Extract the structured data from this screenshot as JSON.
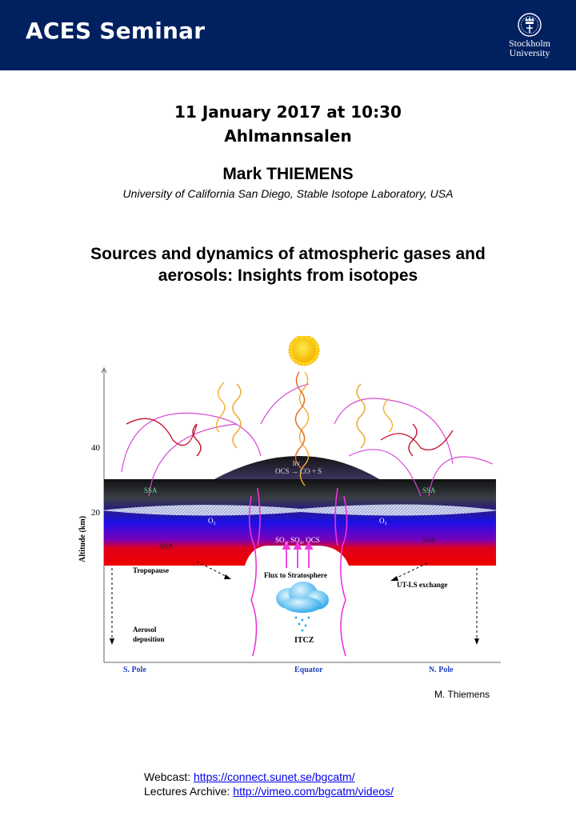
{
  "header": {
    "title": "ACES Seminar",
    "logo_line1": "Stockholm",
    "logo_line2": "University"
  },
  "event": {
    "datetime": "11 January 2017 at 10:30",
    "venue": "Ahlmannsalen"
  },
  "speaker": {
    "name": "Mark THIEMENS",
    "affiliation": "University of California San Diego, Stable Isotope Laboratory, USA"
  },
  "talk": {
    "title_line1": "Sources and dynamics of atmospheric gases and",
    "title_line2": "aerosols: Insights from isotopes"
  },
  "figure": {
    "ylabel": "Altitude (km)",
    "tick_40": "40",
    "tick_20": "20",
    "label_hv": "hv",
    "label_ocs_reaction": "OCS → CO + S",
    "label_ssa_left_top": "SSA",
    "label_ssa_right_top": "SSA",
    "label_o3_left": "O₃",
    "label_o3_right": "O₃",
    "label_so_species": "SO₂, SO₄, OCS",
    "label_ssa_left_low": "SSA",
    "label_ssa_right_low": "SSA",
    "label_tropopause": "Tropopause",
    "label_flux": "Flux to Stratosphere",
    "label_utls": "UT-LS exchange",
    "label_aerosol1": "Aerosol",
    "label_aerosol2": "deposition",
    "label_itcz": "ITCZ",
    "label_spole": "S. Pole",
    "label_equator": "Equator",
    "label_npole": "N.  Pole",
    "credit": "M. Thiemens"
  },
  "links": {
    "webcast_label": "Webcast: ",
    "webcast_url": "https://connect.sunet.se/bgcatm/",
    "archive_label": "Lectures Archive: ",
    "archive_url": "http://vimeo.com/bgcatm/videos/"
  }
}
